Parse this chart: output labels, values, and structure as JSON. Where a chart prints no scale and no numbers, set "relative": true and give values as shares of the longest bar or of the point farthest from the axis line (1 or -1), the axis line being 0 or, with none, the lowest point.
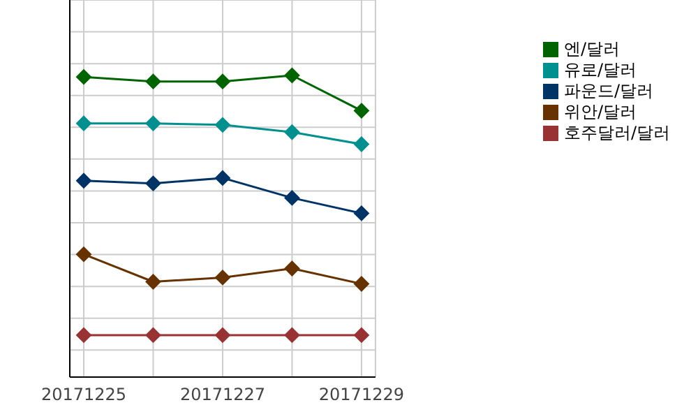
{
  "chart_data": {
    "type": "line",
    "relative": true,
    "categories": [
      "20171225",
      null,
      "20171227",
      null,
      "20171229"
    ],
    "series": [
      {
        "name": "엔/달러",
        "color": "#006400",
        "values": [
          0.995,
          0.98,
          0.98,
          1,
          0.883
        ]
      },
      {
        "name": "유로/달러",
        "color": "#009090",
        "values": [
          0.841,
          0.841,
          0.836,
          0.812,
          0.772
        ]
      },
      {
        "name": "파운드/달러",
        "color": "#003366",
        "values": [
          0.651,
          0.642,
          0.66,
          0.594,
          0.543
        ]
      },
      {
        "name": "위안/달러",
        "color": "#663300",
        "values": [
          0.407,
          0.316,
          0.33,
          0.36,
          0.309
        ]
      },
      {
        "name": "호주달러/달러",
        "color": "#993333",
        "values": [
          0.139,
          0.139,
          0.139,
          0.139,
          0.139
        ]
      }
    ],
    "grid": true,
    "legend": "right",
    "marker": "diamond",
    "line_style": "solid"
  }
}
